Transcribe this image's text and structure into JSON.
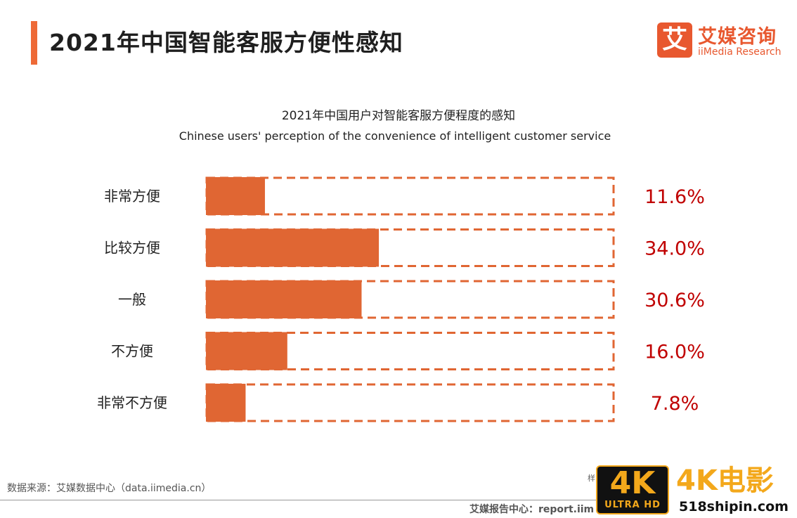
{
  "page": {
    "title": "2021年中国智能客服方便性感知",
    "logo_mark": "艾",
    "logo_cn": "艾媒咨询",
    "logo_en": "iiMedia Research",
    "source": "数据来源：艾媒数据中心（data.iimedia.cn）",
    "footer": "艾媒报告中心：report.iim",
    "small_mark": "样"
  },
  "watermark": {
    "badge_main": "4K",
    "badge_sub": "ULTRA HD",
    "title": "4K电影",
    "url": "518shipin.com"
  },
  "colors": {
    "accent": "#ee6a37",
    "bar": "#e06633",
    "value_text": "#c00000"
  },
  "chart_data": {
    "type": "bar",
    "orientation": "horizontal",
    "title": "2021年中国用户对智能客服方便程度的感知",
    "subtitle": "Chinese users' perception of the convenience of intelligent customer service",
    "categories": [
      "非常方便",
      "比较方便",
      "一般",
      "不方便",
      "非常不方便"
    ],
    "values": [
      11.6,
      34.0,
      30.6,
      16.0,
      7.8
    ],
    "labels": [
      "11.6%",
      "34.0%",
      "30.6%",
      "16.0%",
      "7.8%"
    ],
    "unit": "%",
    "xlim": [
      0,
      80
    ],
    "grid": false,
    "legend": "none"
  }
}
